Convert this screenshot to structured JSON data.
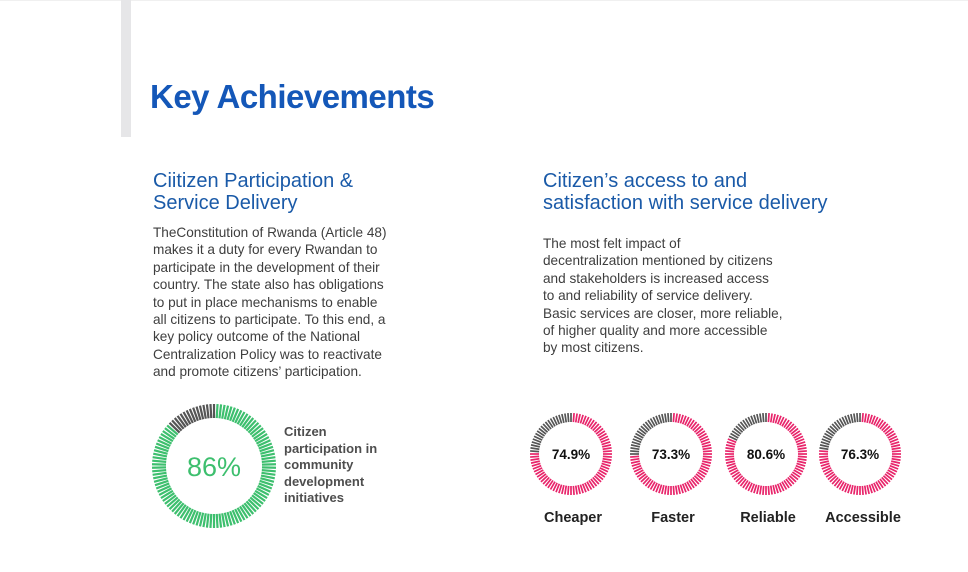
{
  "title": "Key Achievements",
  "left": {
    "heading_line1": "Ciitizen Participation &",
    "heading_line2": "Service Delivery",
    "paragraph_lines": [
      "TheConstitution of Rwanda (Article 48)",
      "makes it a duty for every Rwandan to",
      "participate in the development of their",
      "country. The state also has obligations",
      "to put in place mechanisms to enable",
      "all citizens to participate. To this end, a",
      "key policy outcome of the National",
      "Centralization Policy was to reactivate",
      "and promote citizens’ participation."
    ],
    "gauge": {
      "value": 86,
      "value_text": "86%",
      "label_lines": [
        "Citizen",
        "participation in",
        "community",
        "development",
        "initiatives"
      ],
      "fill_color": "#3dbf6e",
      "rest_color": "#555555"
    }
  },
  "right": {
    "heading_line1": "Citizen’s access to and",
    "heading_line2": "satisfaction with service delivery",
    "paragraph_lines": [
      "The most felt impact of",
      "decentralization mentioned by citizens",
      "and stakeholders is increased access",
      "to and reliability of service delivery.",
      "Basic services are closer, more reliable,",
      "of higher quality and more accessible",
      "by most citizens."
    ],
    "gauges": [
      {
        "value": 74.9,
        "value_text": "74.9%",
        "label": "Cheaper"
      },
      {
        "value": 73.3,
        "value_text": "73.3%",
        "label": "Faster"
      },
      {
        "value": 80.6,
        "value_text": "80.6%",
        "label": "Reliable"
      },
      {
        "value": 76.3,
        "value_text": "76.3%",
        "label": "Accessible"
      }
    ],
    "fill_color": "#e8246a",
    "rest_color": "#555555"
  }
}
